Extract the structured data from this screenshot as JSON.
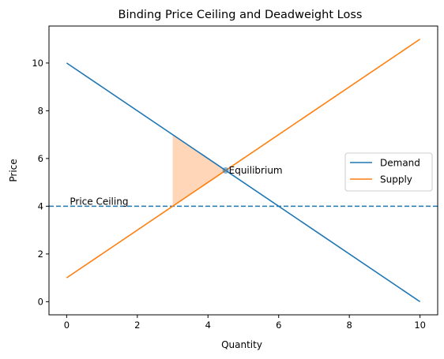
{
  "chart_data": {
    "type": "line",
    "title": "Binding Price Ceiling and Deadweight Loss",
    "xlabel": "Quantity",
    "ylabel": "Price",
    "xlim": [
      -0.5,
      10.5
    ],
    "ylim": [
      -0.55,
      11.55
    ],
    "x_ticks": [
      0,
      2,
      4,
      6,
      8,
      10
    ],
    "y_ticks": [
      0,
      2,
      4,
      6,
      8,
      10
    ],
    "grid": false,
    "legend_position": "center-right",
    "series": [
      {
        "name": "Demand",
        "color": "#1f77b4",
        "style": "solid",
        "x": [
          0,
          10
        ],
        "y": [
          10,
          0
        ]
      },
      {
        "name": "Supply",
        "color": "#ff7f0e",
        "style": "solid",
        "x": [
          0,
          10
        ],
        "y": [
          1,
          11
        ]
      }
    ],
    "price_ceiling": {
      "label": "Price Ceiling",
      "y": 4,
      "color": "#1f77b4",
      "style": "dashed"
    },
    "equilibrium": {
      "label": "Equilibrium",
      "x": 4.5,
      "y": 5.5,
      "color": "#1f77b4"
    },
    "deadweight_loss": {
      "color": "#ffbb88",
      "polygon": [
        [
          3,
          7
        ],
        [
          4.5,
          5.5
        ],
        [
          3,
          4
        ]
      ]
    }
  }
}
